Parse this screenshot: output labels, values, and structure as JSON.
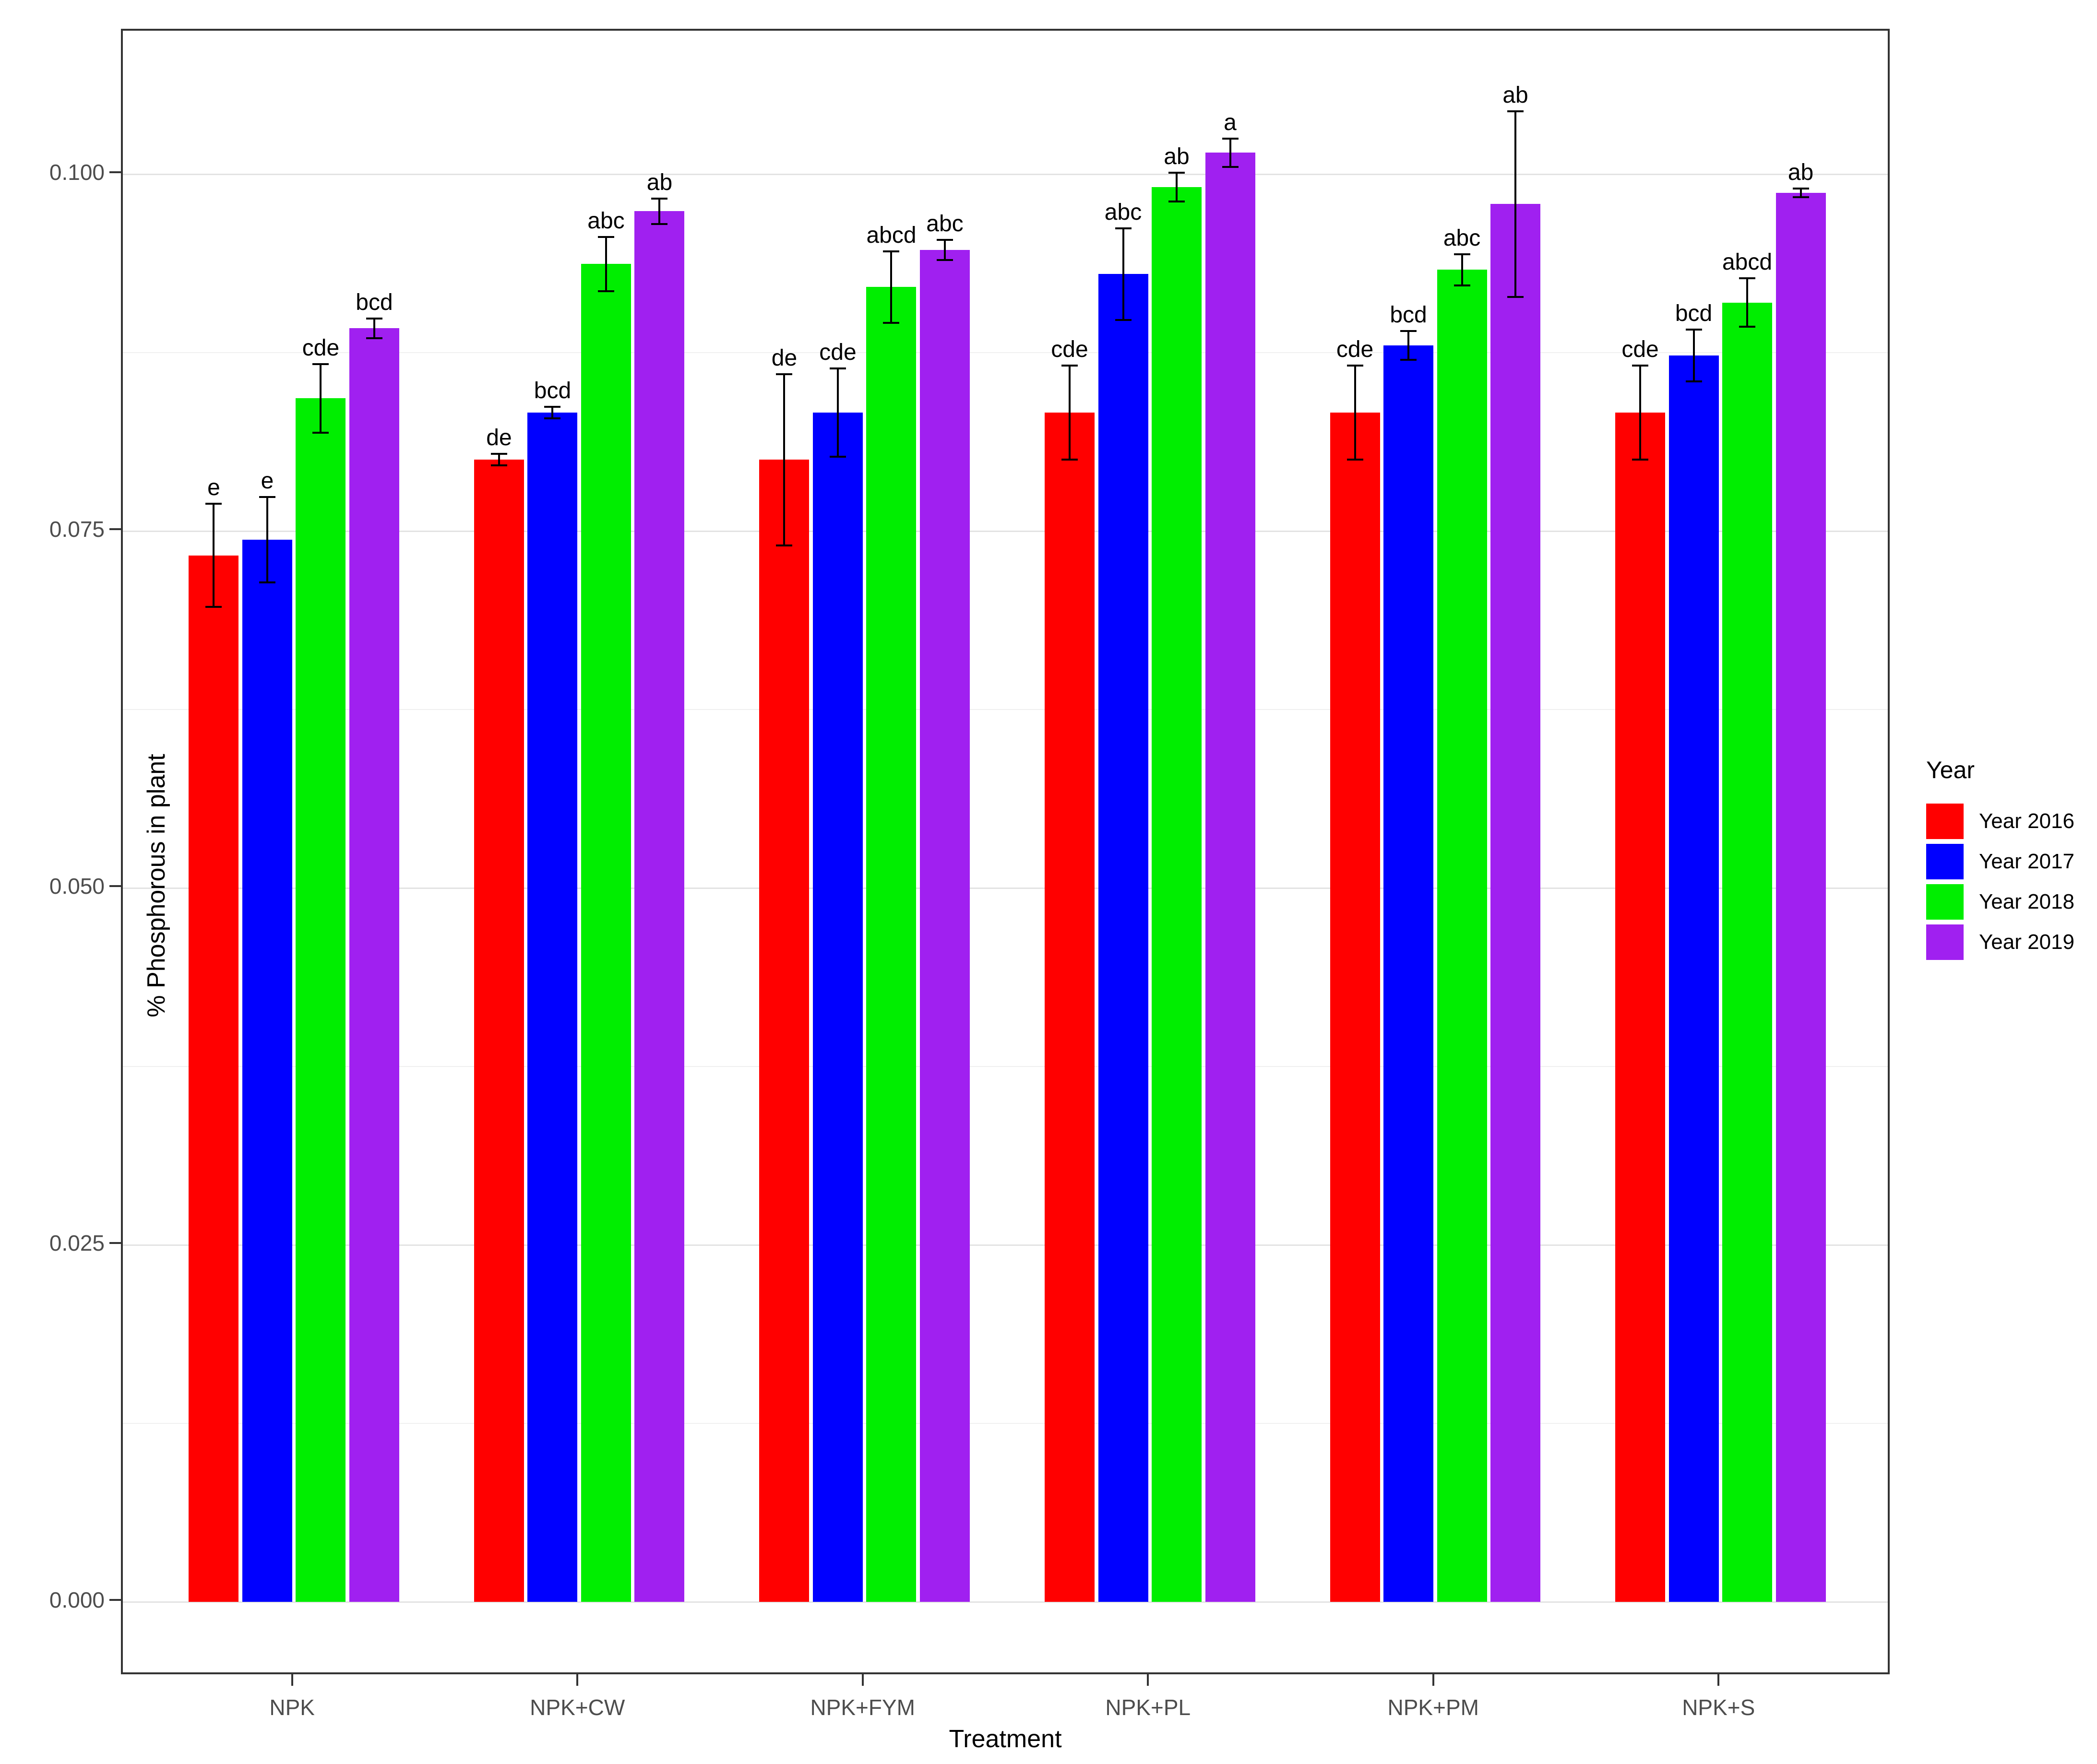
{
  "chart_data": {
    "type": "bar",
    "title": "",
    "xlabel": "Treatment",
    "ylabel": "% Phosphorous in plant",
    "legend_title": "Year",
    "legend_position": "right",
    "grid": true,
    "categories": [
      "NPK",
      "NPK+CW",
      "NPK+FYM",
      "NPK+PL",
      "NPK+PM",
      "NPK+S"
    ],
    "series": [
      {
        "name": "Year 2016",
        "color": "#FF0000",
        "values": [
          0.0733,
          0.08,
          0.08,
          0.0833,
          0.0833,
          0.0833
        ],
        "errors": [
          0.0036,
          0.0004,
          0.006,
          0.0033,
          0.0033,
          0.0033
        ],
        "letters": [
          "e",
          "de",
          "de",
          "cde",
          "cde",
          "cde"
        ]
      },
      {
        "name": "Year 2017",
        "color": "#0000FF",
        "values": [
          0.0744,
          0.0833,
          0.0833,
          0.093,
          0.088,
          0.0873
        ],
        "errors": [
          0.003,
          0.0004,
          0.0031,
          0.0032,
          0.001,
          0.0018
        ],
        "letters": [
          "e",
          "bcd",
          "cde",
          "abc",
          "bcd",
          "bcd"
        ]
      },
      {
        "name": "Year 2018",
        "color": "#00EE00",
        "values": [
          0.0843,
          0.0937,
          0.0921,
          0.0991,
          0.0933,
          0.091
        ],
        "errors": [
          0.0024,
          0.0019,
          0.0025,
          0.001,
          0.0011,
          0.0017
        ],
        "letters": [
          "cde",
          "abc",
          "abcd",
          "ab",
          "abc",
          "abcd"
        ]
      },
      {
        "name": "Year 2019",
        "color": "#A020F0",
        "values": [
          0.0892,
          0.0974,
          0.0947,
          0.1015,
          0.0979,
          0.0987
        ],
        "errors": [
          0.0007,
          0.0009,
          0.0007,
          0.001,
          0.0065,
          0.0003
        ],
        "letters": [
          "bcd",
          "ab",
          "abc",
          "a",
          "ab",
          "ab"
        ]
      }
    ],
    "y_ticks": [
      {
        "v": 0.0,
        "label": "0.000"
      },
      {
        "v": 0.025,
        "label": "0.025"
      },
      {
        "v": 0.05,
        "label": "0.050"
      },
      {
        "v": 0.075,
        "label": "0.075"
      },
      {
        "v": 0.1,
        "label": "0.100"
      }
    ],
    "y_minor": [
      0.0125,
      0.0375,
      0.0625,
      0.0875
    ],
    "ylim": [
      0,
      0.11
    ]
  }
}
